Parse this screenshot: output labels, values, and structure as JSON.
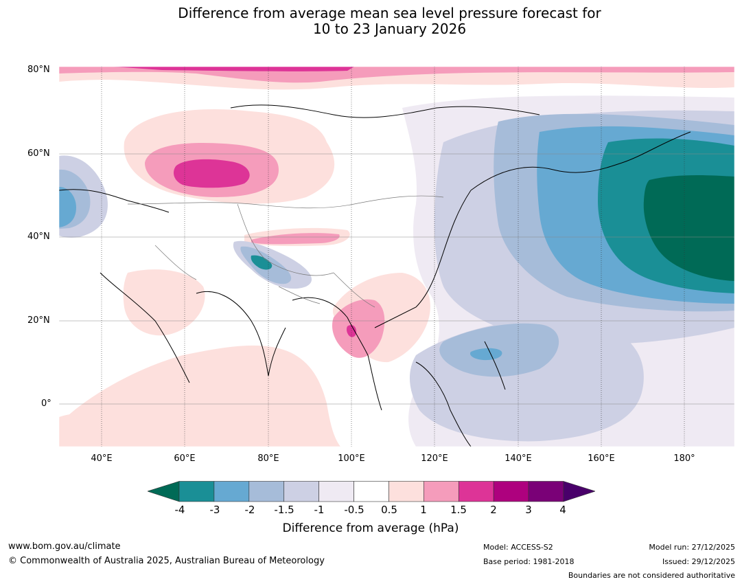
{
  "title": {
    "line1": "Difference from average mean sea level pressure forecast for",
    "line2": "10 to 23 January 2026"
  },
  "map": {
    "lat_labels": [
      "80°N",
      "60°N",
      "40°N",
      "20°N",
      "0°"
    ],
    "lon_labels": [
      "40°E",
      "60°E",
      "80°E",
      "100°E",
      "120°E",
      "140°E",
      "160°E",
      "180°"
    ]
  },
  "colorbar": {
    "ticks": [
      "-4",
      "-3",
      "-2",
      "-1.5",
      "-1",
      "-0.5",
      "0.5",
      "1",
      "1.5",
      "2",
      "3",
      "4"
    ],
    "colors": [
      "#006a56",
      "#1a8f96",
      "#66a9d2",
      "#a6bcd9",
      "#cdd0e4",
      "#efeaf3",
      "#ffffff",
      "#fde0dd",
      "#f59cbb",
      "#dd3497",
      "#ae017e",
      "#7a0177",
      "#49006a"
    ],
    "title": "Difference from average (hPa)"
  },
  "footer": {
    "website": "www.bom.gov.au/climate",
    "copyright": "© Commonwealth of Australia 2025, Australian Bureau of Meteorology",
    "model": "Model: ACCESS-S2",
    "base_period": "Base period: 1981-2018",
    "model_run": "Model run: 27/12/2025",
    "issued": "Issued: 29/12/2025",
    "disclaimer": "Boundaries are not considered authoritative"
  }
}
